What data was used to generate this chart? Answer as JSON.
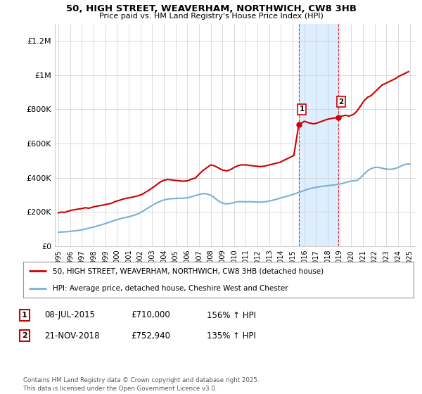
{
  "title_line1": "50, HIGH STREET, WEAVERHAM, NORTHWICH, CW8 3HB",
  "title_line2": "Price paid vs. HM Land Registry's House Price Index (HPI)",
  "ylabel_ticks": [
    "£0",
    "£200K",
    "£400K",
    "£600K",
    "£800K",
    "£1M",
    "£1.2M"
  ],
  "ylabel_values": [
    0,
    200000,
    400000,
    600000,
    800000,
    1000000,
    1200000
  ],
  "ylim": [
    0,
    1300000
  ],
  "xlim_start": 1994.7,
  "xlim_end": 2025.5,
  "xticks": [
    1995,
    1996,
    1997,
    1998,
    1999,
    2000,
    2001,
    2002,
    2003,
    2004,
    2005,
    2006,
    2007,
    2008,
    2009,
    2010,
    2011,
    2012,
    2013,
    2014,
    2015,
    2016,
    2017,
    2018,
    2019,
    2020,
    2021,
    2022,
    2023,
    2024,
    2025
  ],
  "sale1_date": 2015.52,
  "sale1_price": 710000,
  "sale1_label": "1",
  "sale2_date": 2018.9,
  "sale2_price": 752940,
  "sale2_label": "2",
  "sale1_row": "08-JUL-2015",
  "sale1_price_str": "£710,000",
  "sale1_hpi_str": "156% ↑ HPI",
  "sale2_row": "21-NOV-2018",
  "sale2_price_str": "£752,940",
  "sale2_hpi_str": "135% ↑ HPI",
  "hpi_line_color": "#7bafd4",
  "price_line_color": "#cc0000",
  "sale_marker_color": "#cc0000",
  "shaded_color": "#ddeeff",
  "grid_color": "#cccccc",
  "background_color": "#ffffff",
  "legend_text_price": "50, HIGH STREET, WEAVERHAM, NORTHWICH, CW8 3HB (detached house)",
  "legend_text_hpi": "HPI: Average price, detached house, Cheshire West and Chester",
  "footer_text": "Contains HM Land Registry data © Crown copyright and database right 2025.\nThis data is licensed under the Open Government Licence v3.0.",
  "hpi_data_x": [
    1995.0,
    1995.25,
    1995.5,
    1995.75,
    1996.0,
    1996.25,
    1996.5,
    1996.75,
    1997.0,
    1997.25,
    1997.5,
    1997.75,
    1998.0,
    1998.25,
    1998.5,
    1998.75,
    1999.0,
    1999.25,
    1999.5,
    1999.75,
    2000.0,
    2000.25,
    2000.5,
    2000.75,
    2001.0,
    2001.25,
    2001.5,
    2001.75,
    2002.0,
    2002.25,
    2002.5,
    2002.75,
    2003.0,
    2003.25,
    2003.5,
    2003.75,
    2004.0,
    2004.25,
    2004.5,
    2004.75,
    2005.0,
    2005.25,
    2005.5,
    2005.75,
    2006.0,
    2006.25,
    2006.5,
    2006.75,
    2007.0,
    2007.25,
    2007.5,
    2007.75,
    2008.0,
    2008.25,
    2008.5,
    2008.75,
    2009.0,
    2009.25,
    2009.5,
    2009.75,
    2010.0,
    2010.25,
    2010.5,
    2010.75,
    2011.0,
    2011.25,
    2011.5,
    2011.75,
    2012.0,
    2012.25,
    2012.5,
    2012.75,
    2013.0,
    2013.25,
    2013.5,
    2013.75,
    2014.0,
    2014.25,
    2014.5,
    2014.75,
    2015.0,
    2015.25,
    2015.5,
    2015.75,
    2016.0,
    2016.25,
    2016.5,
    2016.75,
    2017.0,
    2017.25,
    2017.5,
    2017.75,
    2018.0,
    2018.25,
    2018.5,
    2018.75,
    2019.0,
    2019.25,
    2019.5,
    2019.75,
    2020.0,
    2020.25,
    2020.5,
    2020.75,
    2021.0,
    2021.25,
    2021.5,
    2021.75,
    2022.0,
    2022.25,
    2022.5,
    2022.75,
    2023.0,
    2023.25,
    2023.5,
    2023.75,
    2024.0,
    2024.25,
    2024.5,
    2024.75,
    2025.0
  ],
  "hpi_data_y": [
    82000,
    83000,
    84000,
    85000,
    87000,
    89000,
    91000,
    93000,
    96000,
    100000,
    104000,
    108000,
    112000,
    117000,
    122000,
    127000,
    132000,
    138000,
    144000,
    150000,
    155000,
    160000,
    165000,
    168000,
    172000,
    177000,
    182000,
    188000,
    196000,
    206000,
    217000,
    228000,
    238000,
    248000,
    257000,
    264000,
    270000,
    274000,
    277000,
    278000,
    279000,
    280000,
    280000,
    281000,
    283000,
    287000,
    292000,
    297000,
    302000,
    306000,
    307000,
    304000,
    298000,
    287000,
    273000,
    261000,
    252000,
    248000,
    248000,
    251000,
    255000,
    259000,
    261000,
    260000,
    259000,
    260000,
    260000,
    259000,
    258000,
    258000,
    259000,
    261000,
    264000,
    268000,
    272000,
    277000,
    282000,
    287000,
    292000,
    297000,
    302000,
    308000,
    314000,
    320000,
    326000,
    332000,
    337000,
    341000,
    344000,
    347000,
    350000,
    352000,
    354000,
    356000,
    358000,
    360000,
    363000,
    367000,
    372000,
    377000,
    381000,
    382000,
    384000,
    398000,
    415000,
    432000,
    446000,
    455000,
    460000,
    461000,
    458000,
    454000,
    451000,
    449000,
    450000,
    454000,
    460000,
    468000,
    476000,
    480000,
    480000
  ],
  "price_data_x": [
    1995.0,
    1995.3,
    1995.5,
    1995.7,
    1996.1,
    1996.5,
    1997.0,
    1997.3,
    1997.6,
    1997.9,
    1998.2,
    1998.5,
    1998.8,
    1999.1,
    1999.5,
    1999.8,
    2000.2,
    2000.5,
    2000.8,
    2001.2,
    2001.5,
    2001.8,
    2002.2,
    2002.5,
    2002.8,
    2003.1,
    2003.4,
    2003.7,
    2004.0,
    2004.3,
    2004.6,
    2004.9,
    2005.2,
    2005.6,
    2006.0,
    2006.3,
    2006.7,
    2007.0,
    2007.3,
    2007.7,
    2008.0,
    2008.3,
    2008.6,
    2009.0,
    2009.4,
    2009.7,
    2010.0,
    2010.3,
    2010.6,
    2011.0,
    2011.3,
    2011.6,
    2011.9,
    2012.2,
    2012.6,
    2013.0,
    2013.3,
    2013.6,
    2013.9,
    2014.2,
    2014.5,
    2014.8,
    2015.1,
    2015.52,
    2016.0,
    2016.4,
    2016.8,
    2017.1,
    2017.5,
    2017.9,
    2018.2,
    2018.5,
    2018.9,
    2019.2,
    2019.5,
    2019.8,
    2020.2,
    2020.5,
    2020.8,
    2021.1,
    2021.4,
    2021.7,
    2022.0,
    2022.3,
    2022.6,
    2022.9,
    2023.2,
    2023.5,
    2023.8,
    2024.0,
    2024.3,
    2024.6,
    2024.9
  ],
  "price_data_y": [
    195000,
    200000,
    197000,
    202000,
    210000,
    215000,
    220000,
    225000,
    222000,
    228000,
    233000,
    237000,
    240000,
    245000,
    250000,
    260000,
    268000,
    275000,
    280000,
    285000,
    290000,
    295000,
    305000,
    318000,
    330000,
    345000,
    360000,
    375000,
    385000,
    390000,
    388000,
    385000,
    383000,
    380000,
    382000,
    390000,
    398000,
    420000,
    440000,
    460000,
    475000,
    470000,
    460000,
    445000,
    440000,
    448000,
    460000,
    470000,
    475000,
    475000,
    472000,
    470000,
    468000,
    465000,
    468000,
    475000,
    480000,
    485000,
    490000,
    500000,
    510000,
    520000,
    530000,
    710000,
    730000,
    720000,
    715000,
    720000,
    730000,
    740000,
    745000,
    748000,
    752940,
    760000,
    765000,
    760000,
    770000,
    790000,
    820000,
    850000,
    870000,
    880000,
    900000,
    920000,
    940000,
    950000,
    960000,
    970000,
    980000,
    990000,
    1000000,
    1010000,
    1020000
  ]
}
